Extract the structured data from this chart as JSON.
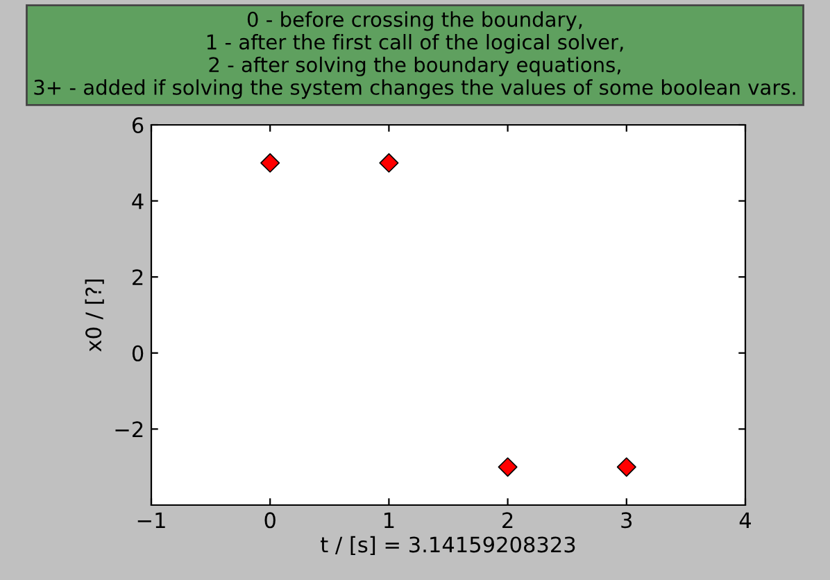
{
  "chart_data": {
    "type": "scatter",
    "title": "0 - before crossing the boundary,\n1 - after the first call of the logical solver,\n2 - after solving the boundary equations,\n3+ - added if solving the system changes the values of some boolean vars.",
    "xlabel": "t / [s] = 3.14159208323",
    "ylabel": "x0 / [?]",
    "x": [
      0,
      1,
      2,
      3
    ],
    "values": [
      5,
      5,
      -3,
      -3
    ],
    "color": "#ff0000",
    "marker": "diamond",
    "xlim": [
      -1,
      4
    ],
    "xticks": [
      {
        "value": -1,
        "label": "−1"
      },
      0,
      1,
      2,
      3,
      4
    ],
    "ylim": [
      -4,
      6
    ],
    "yticks": [
      {
        "value": -2,
        "label": "−2"
      },
      0,
      2,
      4,
      6
    ],
    "grid": false
  }
}
